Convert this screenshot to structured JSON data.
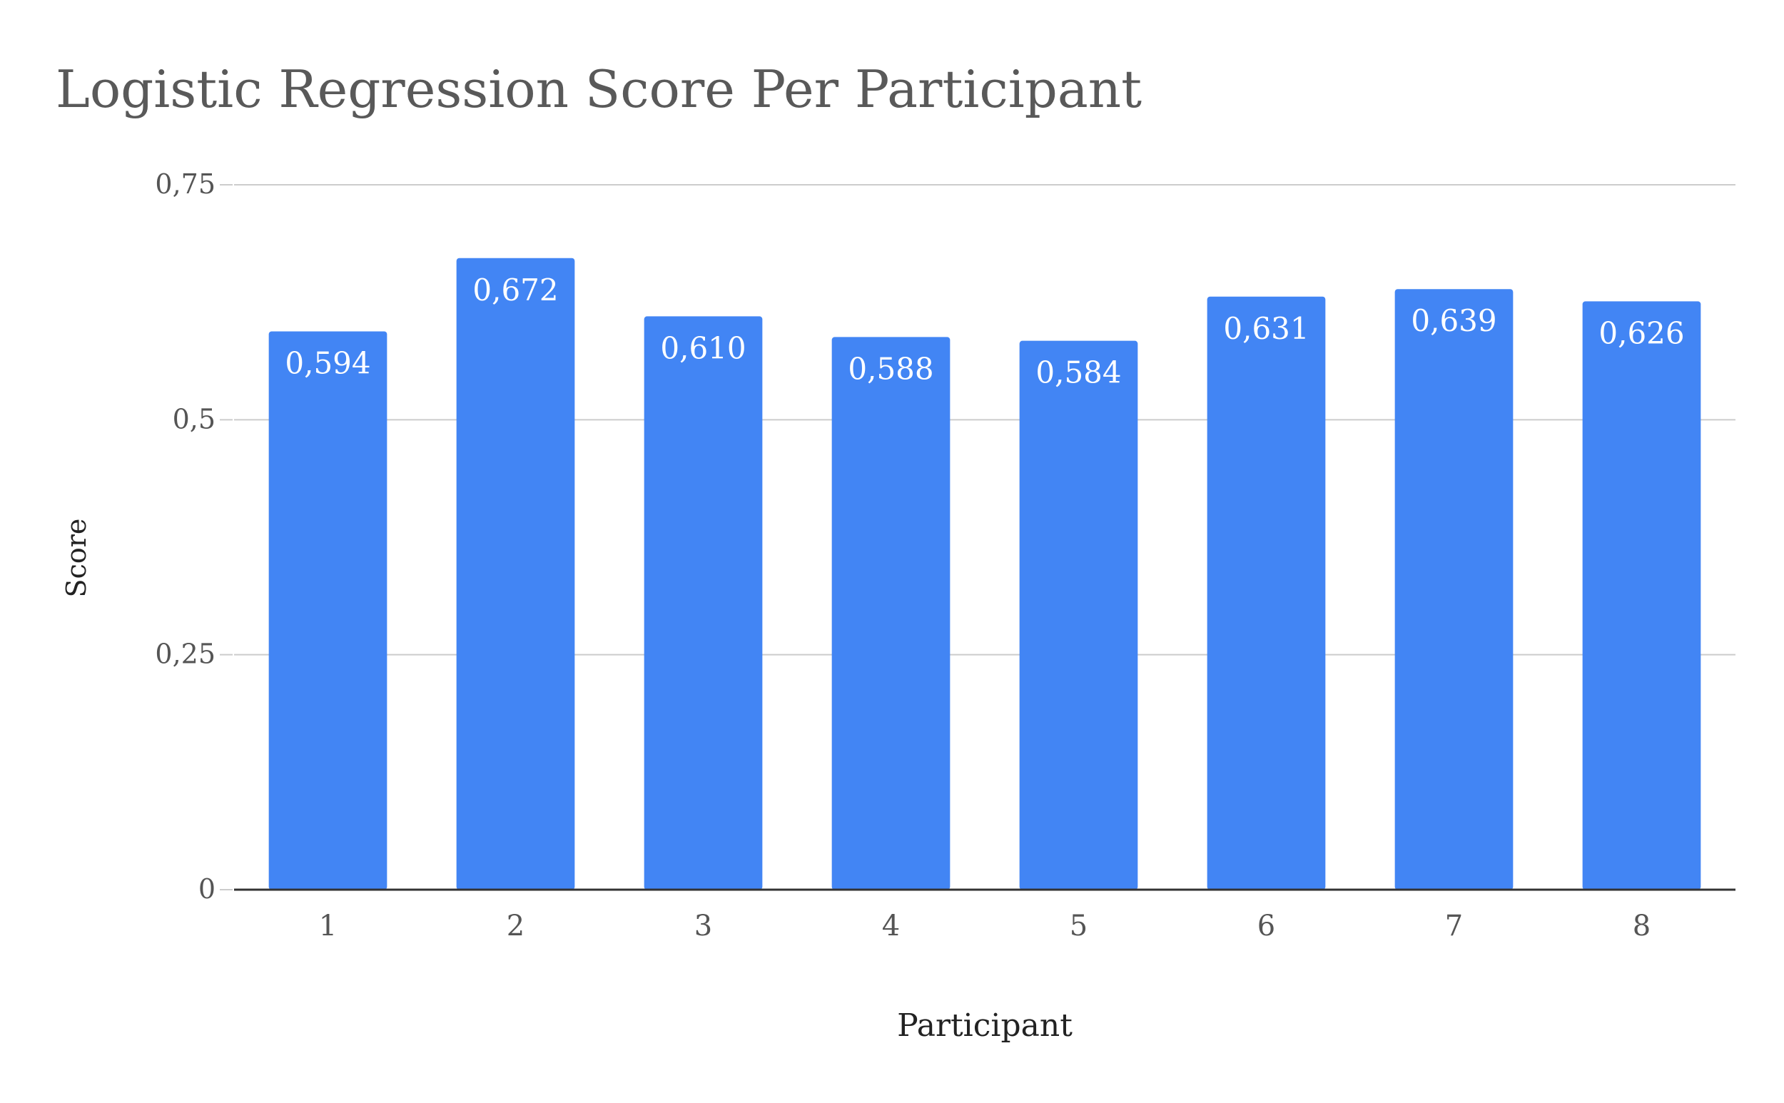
{
  "chart_data": {
    "type": "bar",
    "title": "Logistic Regression Score Per Participant",
    "xlabel": "Participant",
    "ylabel": "Score",
    "categories": [
      "1",
      "2",
      "3",
      "4",
      "5",
      "6",
      "7",
      "8"
    ],
    "values": [
      0.594,
      0.672,
      0.61,
      0.588,
      0.584,
      0.631,
      0.639,
      0.626
    ],
    "value_labels": [
      "0,594",
      "0,672",
      "0,610",
      "0,588",
      "0,584",
      "0,631",
      "0,639",
      "0,626"
    ],
    "ylim": [
      0,
      0.75
    ],
    "yticks": [
      {
        "value": 0,
        "label": "0"
      },
      {
        "value": 0.25,
        "label": "0,25"
      },
      {
        "value": 0.5,
        "label": "0,5"
      },
      {
        "value": 0.75,
        "label": "0,75"
      }
    ],
    "grid": true,
    "legend": "none",
    "bar_color": "#4285f4",
    "grid_color": "#cccccc",
    "axis_color": "#333333"
  }
}
